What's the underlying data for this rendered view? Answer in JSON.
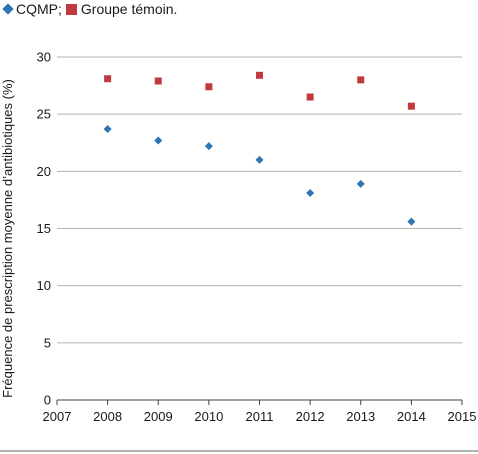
{
  "legend": {
    "series0_label": "CQMP",
    "separator": ";",
    "series1_label": "Groupe témoin."
  },
  "colors": {
    "series0": "#2E75B6",
    "series1": "#C0393E",
    "grid": "#b3b3b3",
    "axis": "#404040"
  },
  "chart_data": {
    "type": "scatter",
    "title": "",
    "xlabel": "",
    "ylabel": "Fréquence de prescription moyenne d’antibiotiques (%)",
    "xlim": [
      2007,
      2015
    ],
    "ylim": [
      0,
      30
    ],
    "xticks": [
      2007,
      2008,
      2009,
      2010,
      2011,
      2012,
      2013,
      2014,
      2015
    ],
    "yticks": [
      0,
      5,
      10,
      15,
      20,
      25,
      30
    ],
    "grid": "horizontal",
    "legend_position": "top-left",
    "series": [
      {
        "name": "CQMP",
        "marker": "diamond",
        "x": [
          2008,
          2009,
          2010,
          2011,
          2012,
          2013,
          2014
        ],
        "y": [
          23.7,
          22.7,
          22.2,
          21.0,
          18.1,
          18.9,
          15.6
        ]
      },
      {
        "name": "Groupe témoin.",
        "marker": "square",
        "x": [
          2008,
          2009,
          2010,
          2011,
          2012,
          2013,
          2014
        ],
        "y": [
          28.1,
          27.9,
          27.4,
          28.4,
          26.5,
          28.0,
          25.7
        ]
      }
    ]
  }
}
